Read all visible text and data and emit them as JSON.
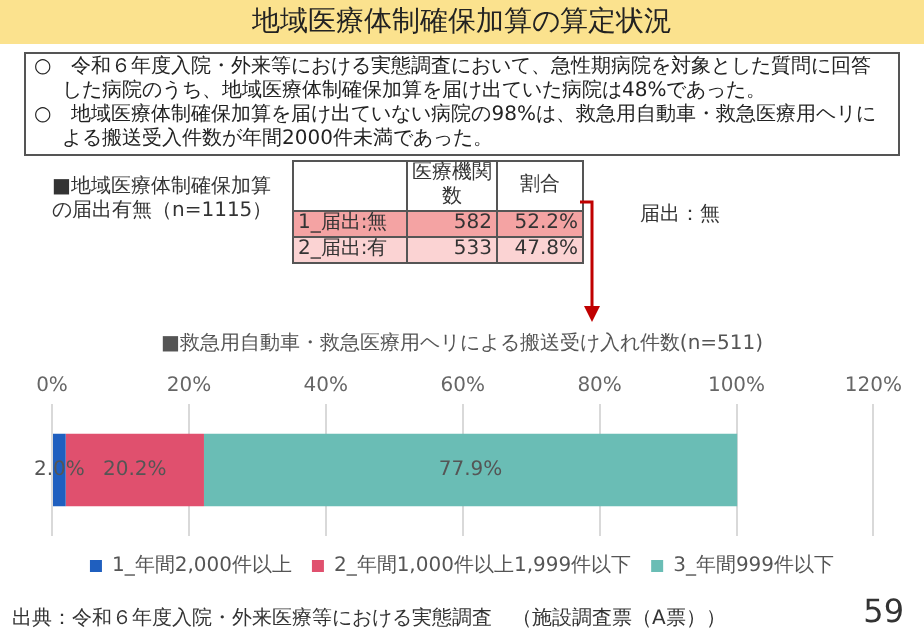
{
  "chart_data": {
    "type": "bar",
    "orientation": "horizontal",
    "stacked": true,
    "title": "地域医療体制確保加算の算定状況",
    "subtitle": "■救急用自動車・救急医療用ヘリによる搬送受け入れ件数(n=511)",
    "categories": [
      null
    ],
    "series": [
      {
        "name": "1_年間2,000件以上",
        "color": "#1f5fbf",
        "values": [
          2.0
        ],
        "value_labels": [
          "2.0%"
        ]
      },
      {
        "name": "2_年間1,000件以上1,999件以下",
        "color": "#e0506e",
        "values": [
          20.2
        ],
        "value_labels": [
          "20.2%"
        ]
      },
      {
        "name": "3_年間999件以下",
        "color": "#6abdb5",
        "values": [
          77.9
        ],
        "value_labels": [
          "77.9%"
        ]
      }
    ],
    "xlim": [
      0,
      120
    ],
    "xticks": [
      {
        "value": 0,
        "label": "0%"
      },
      {
        "value": 20,
        "label": "20%"
      },
      {
        "value": 40,
        "label": "40%"
      },
      {
        "value": 60,
        "label": "60%"
      },
      {
        "value": 80,
        "label": "80%"
      },
      {
        "value": 100,
        "label": "100%"
      },
      {
        "value": 120,
        "label": "120%"
      }
    ],
    "grid": "x",
    "legend": "bottom",
    "tick_labels": "x",
    "annotations": [
      "○　令和６年度入院・外来等における実態調査において、急性期病院を対象とした質問に回答した病院のうち、地域医療体制確保加算を届け出ていた病院は48%であった。",
      "○　地域医療体制確保加算を届け出ていない病院の98%は、救急用自動車・救急医療用ヘリによる搬送受入件数が年間2000件未満であった。",
      "■地域医療体制確保加算の届出有無（n=1115）",
      "医療機関数",
      "割合",
      "1_届出:無",
      "582",
      "52.2%",
      "2_届出:有",
      "533",
      "47.8%",
      "届出：無",
      "出典：令和６年度入院・外来医療等における実態調査　（施設調査票（A票））",
      "59"
    ]
  }
}
